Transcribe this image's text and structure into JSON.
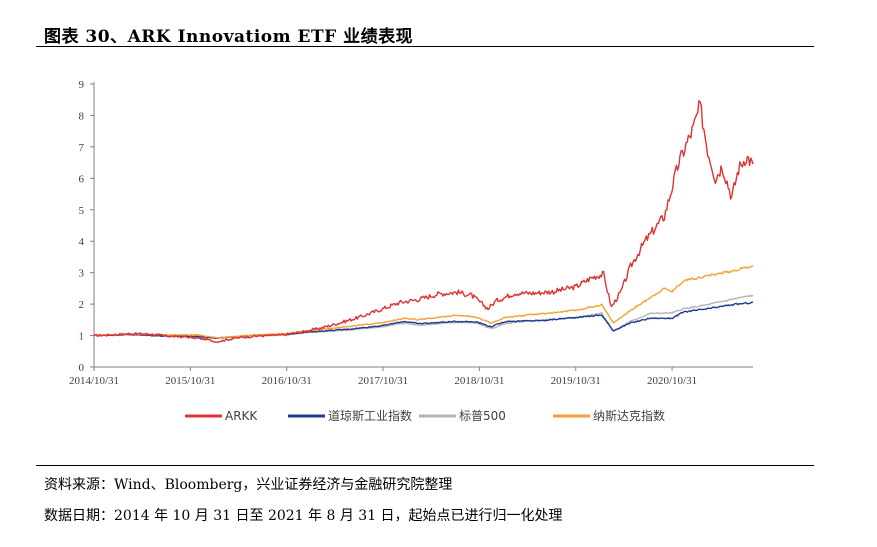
{
  "header": {
    "title": "图表 30、ARK Innovatiom ETF 业绩表现"
  },
  "chart_data": {
    "type": "line",
    "title": "",
    "xlabel": "",
    "ylabel": "",
    "ylim": [
      0,
      9
    ],
    "yticks": [
      0,
      1,
      2,
      3,
      4,
      5,
      6,
      7,
      8,
      9
    ],
    "xlim": [
      2014.83,
      2021.67
    ],
    "xticks": [
      {
        "value": 2014.83,
        "label": "2014/10/31"
      },
      {
        "value": 2015.83,
        "label": "2015/10/31"
      },
      {
        "value": 2016.83,
        "label": "2016/10/31"
      },
      {
        "value": 2017.83,
        "label": "2017/10/31"
      },
      {
        "value": 2018.83,
        "label": "2018/10/31"
      },
      {
        "value": 2019.83,
        "label": "2019/10/31"
      },
      {
        "value": 2020.83,
        "label": "2020/10/31"
      }
    ],
    "legend_position": "bottom",
    "series": [
      {
        "name": "ARKK",
        "color": "#e03232",
        "points": [
          [
            2014.83,
            1.0
          ],
          [
            2015.0,
            1.02
          ],
          [
            2015.2,
            1.06
          ],
          [
            2015.4,
            1.05
          ],
          [
            2015.6,
            0.98
          ],
          [
            2015.8,
            0.95
          ],
          [
            2016.0,
            0.88
          ],
          [
            2016.1,
            0.8
          ],
          [
            2016.3,
            0.92
          ],
          [
            2016.5,
            0.98
          ],
          [
            2016.8,
            1.02
          ],
          [
            2017.0,
            1.12
          ],
          [
            2017.2,
            1.25
          ],
          [
            2017.4,
            1.42
          ],
          [
            2017.6,
            1.6
          ],
          [
            2017.8,
            1.82
          ],
          [
            2018.0,
            2.05
          ],
          [
            2018.2,
            2.15
          ],
          [
            2018.4,
            2.32
          ],
          [
            2018.6,
            2.38
          ],
          [
            2018.75,
            2.28
          ],
          [
            2018.92,
            1.85
          ],
          [
            2019.0,
            2.1
          ],
          [
            2019.2,
            2.35
          ],
          [
            2019.4,
            2.35
          ],
          [
            2019.6,
            2.4
          ],
          [
            2019.83,
            2.55
          ],
          [
            2020.0,
            2.85
          ],
          [
            2020.12,
            2.95
          ],
          [
            2020.2,
            1.9
          ],
          [
            2020.3,
            2.4
          ],
          [
            2020.4,
            3.2
          ],
          [
            2020.55,
            4.0
          ],
          [
            2020.65,
            4.4
          ],
          [
            2020.75,
            4.8
          ],
          [
            2020.9,
            6.5
          ],
          [
            2021.05,
            7.6
          ],
          [
            2021.12,
            8.3
          ],
          [
            2021.2,
            6.9
          ],
          [
            2021.28,
            6.0
          ],
          [
            2021.35,
            6.4
          ],
          [
            2021.45,
            5.4
          ],
          [
            2021.52,
            6.3
          ],
          [
            2021.6,
            6.7
          ],
          [
            2021.67,
            6.45
          ]
        ]
      },
      {
        "name": "道琼斯工业指数",
        "color": "#1f3b8f",
        "points": [
          [
            2014.83,
            1.0
          ],
          [
            2015.2,
            1.03
          ],
          [
            2015.6,
            0.98
          ],
          [
            2015.9,
            0.97
          ],
          [
            2016.1,
            0.92
          ],
          [
            2016.5,
            1.01
          ],
          [
            2016.83,
            1.03
          ],
          [
            2017.0,
            1.1
          ],
          [
            2017.5,
            1.21
          ],
          [
            2017.83,
            1.32
          ],
          [
            2018.05,
            1.45
          ],
          [
            2018.2,
            1.38
          ],
          [
            2018.6,
            1.45
          ],
          [
            2018.8,
            1.44
          ],
          [
            2018.95,
            1.28
          ],
          [
            2019.1,
            1.45
          ],
          [
            2019.5,
            1.48
          ],
          [
            2019.83,
            1.58
          ],
          [
            2020.1,
            1.65
          ],
          [
            2020.22,
            1.15
          ],
          [
            2020.4,
            1.4
          ],
          [
            2020.6,
            1.55
          ],
          [
            2020.83,
            1.55
          ],
          [
            2020.95,
            1.75
          ],
          [
            2021.2,
            1.85
          ],
          [
            2021.45,
            1.98
          ],
          [
            2021.67,
            2.05
          ]
        ]
      },
      {
        "name": "标普500",
        "color": "#b4b4b4",
        "points": [
          [
            2014.83,
            1.0
          ],
          [
            2015.2,
            1.04
          ],
          [
            2015.6,
            0.99
          ],
          [
            2015.9,
            0.98
          ],
          [
            2016.1,
            0.92
          ],
          [
            2016.5,
            1.0
          ],
          [
            2016.83,
            1.03
          ],
          [
            2017.0,
            1.09
          ],
          [
            2017.5,
            1.18
          ],
          [
            2017.83,
            1.28
          ],
          [
            2018.05,
            1.4
          ],
          [
            2018.2,
            1.33
          ],
          [
            2018.6,
            1.42
          ],
          [
            2018.8,
            1.4
          ],
          [
            2018.95,
            1.22
          ],
          [
            2019.1,
            1.38
          ],
          [
            2019.5,
            1.5
          ],
          [
            2019.83,
            1.56
          ],
          [
            2020.1,
            1.72
          ],
          [
            2020.22,
            1.15
          ],
          [
            2020.4,
            1.45
          ],
          [
            2020.6,
            1.7
          ],
          [
            2020.83,
            1.72
          ],
          [
            2020.95,
            1.85
          ],
          [
            2021.2,
            1.98
          ],
          [
            2021.45,
            2.15
          ],
          [
            2021.67,
            2.28
          ]
        ]
      },
      {
        "name": "纳斯达克指数",
        "color": "#f5a032",
        "points": [
          [
            2014.83,
            1.0
          ],
          [
            2015.2,
            1.05
          ],
          [
            2015.6,
            1.02
          ],
          [
            2015.9,
            1.02
          ],
          [
            2016.1,
            0.93
          ],
          [
            2016.5,
            1.02
          ],
          [
            2016.83,
            1.06
          ],
          [
            2017.0,
            1.14
          ],
          [
            2017.5,
            1.3
          ],
          [
            2017.83,
            1.41
          ],
          [
            2018.05,
            1.55
          ],
          [
            2018.2,
            1.5
          ],
          [
            2018.6,
            1.65
          ],
          [
            2018.8,
            1.58
          ],
          [
            2018.95,
            1.4
          ],
          [
            2019.1,
            1.58
          ],
          [
            2019.5,
            1.7
          ],
          [
            2019.83,
            1.8
          ],
          [
            2020.1,
            1.98
          ],
          [
            2020.22,
            1.4
          ],
          [
            2020.4,
            1.8
          ],
          [
            2020.6,
            2.2
          ],
          [
            2020.75,
            2.5
          ],
          [
            2020.83,
            2.4
          ],
          [
            2020.95,
            2.75
          ],
          [
            2021.2,
            2.9
          ],
          [
            2021.45,
            3.05
          ],
          [
            2021.67,
            3.22
          ]
        ]
      }
    ]
  },
  "footer": {
    "source": "资料来源：Wind、Bloomberg，兴业证券经济与金融研究院整理",
    "date_note": "数据日期：2014 年 10 月 31 日至 2021 年 8 月 31 日，起始点已进行归一化处理"
  }
}
